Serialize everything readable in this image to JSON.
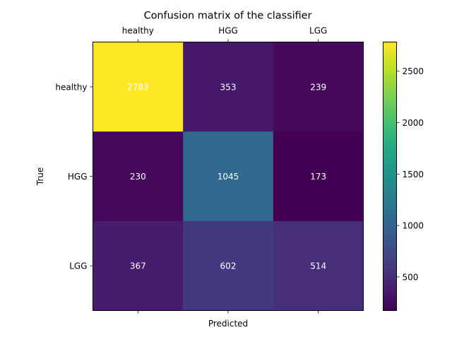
{
  "chart_data": {
    "type": "heatmap",
    "title": "Confusion matrix of the classifier",
    "xlabel": "Predicted",
    "ylabel": "True",
    "x_categories": [
      "healthy",
      "HGG",
      "LGG"
    ],
    "y_categories": [
      "healthy",
      "HGG",
      "LGG"
    ],
    "values": [
      [
        2783,
        353,
        239
      ],
      [
        230,
        1045,
        173
      ],
      [
        367,
        602,
        514
      ]
    ],
    "colormap": "viridis",
    "color_range": [
      173,
      2783
    ],
    "colorbar": {
      "ticks": [
        500,
        1000,
        1500,
        2000,
        2500
      ],
      "tick_labels": [
        "500",
        "1000",
        "1500",
        "2000",
        "2500"
      ]
    },
    "x_tick_position": "top",
    "grid": false
  }
}
